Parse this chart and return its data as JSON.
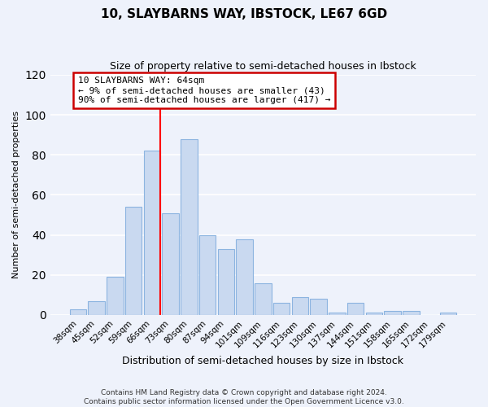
{
  "title": "10, SLAYBARNS WAY, IBSTOCK, LE67 6GD",
  "subtitle": "Size of property relative to semi-detached houses in Ibstock",
  "xlabel": "Distribution of semi-detached houses by size in Ibstock",
  "ylabel": "Number of semi-detached properties",
  "bar_labels": [
    "38sqm",
    "45sqm",
    "52sqm",
    "59sqm",
    "66sqm",
    "73sqm",
    "80sqm",
    "87sqm",
    "94sqm",
    "101sqm",
    "109sqm",
    "116sqm",
    "123sqm",
    "130sqm",
    "137sqm",
    "144sqm",
    "151sqm",
    "158sqm",
    "165sqm",
    "172sqm",
    "179sqm"
  ],
  "bar_values": [
    3,
    7,
    19,
    54,
    82,
    51,
    88,
    40,
    33,
    38,
    16,
    6,
    9,
    8,
    1,
    6,
    1,
    2,
    2,
    0,
    1
  ],
  "bar_color": "#c9d9f0",
  "bar_edge_color": "#8cb4e0",
  "vline_index": 4,
  "vline_color": "red",
  "ylim": [
    0,
    120
  ],
  "yticks": [
    0,
    20,
    40,
    60,
    80,
    100,
    120
  ],
  "annotation_title": "10 SLAYBARNS WAY: 64sqm",
  "annotation_line1": "← 9% of semi-detached houses are smaller (43)",
  "annotation_line2": "90% of semi-detached houses are larger (417) →",
  "annotation_box_color": "white",
  "annotation_box_edge": "#cc0000",
  "footer_line1": "Contains HM Land Registry data © Crown copyright and database right 2024.",
  "footer_line2": "Contains public sector information licensed under the Open Government Licence v3.0.",
  "background_color": "#eef2fb",
  "grid_color": "white"
}
